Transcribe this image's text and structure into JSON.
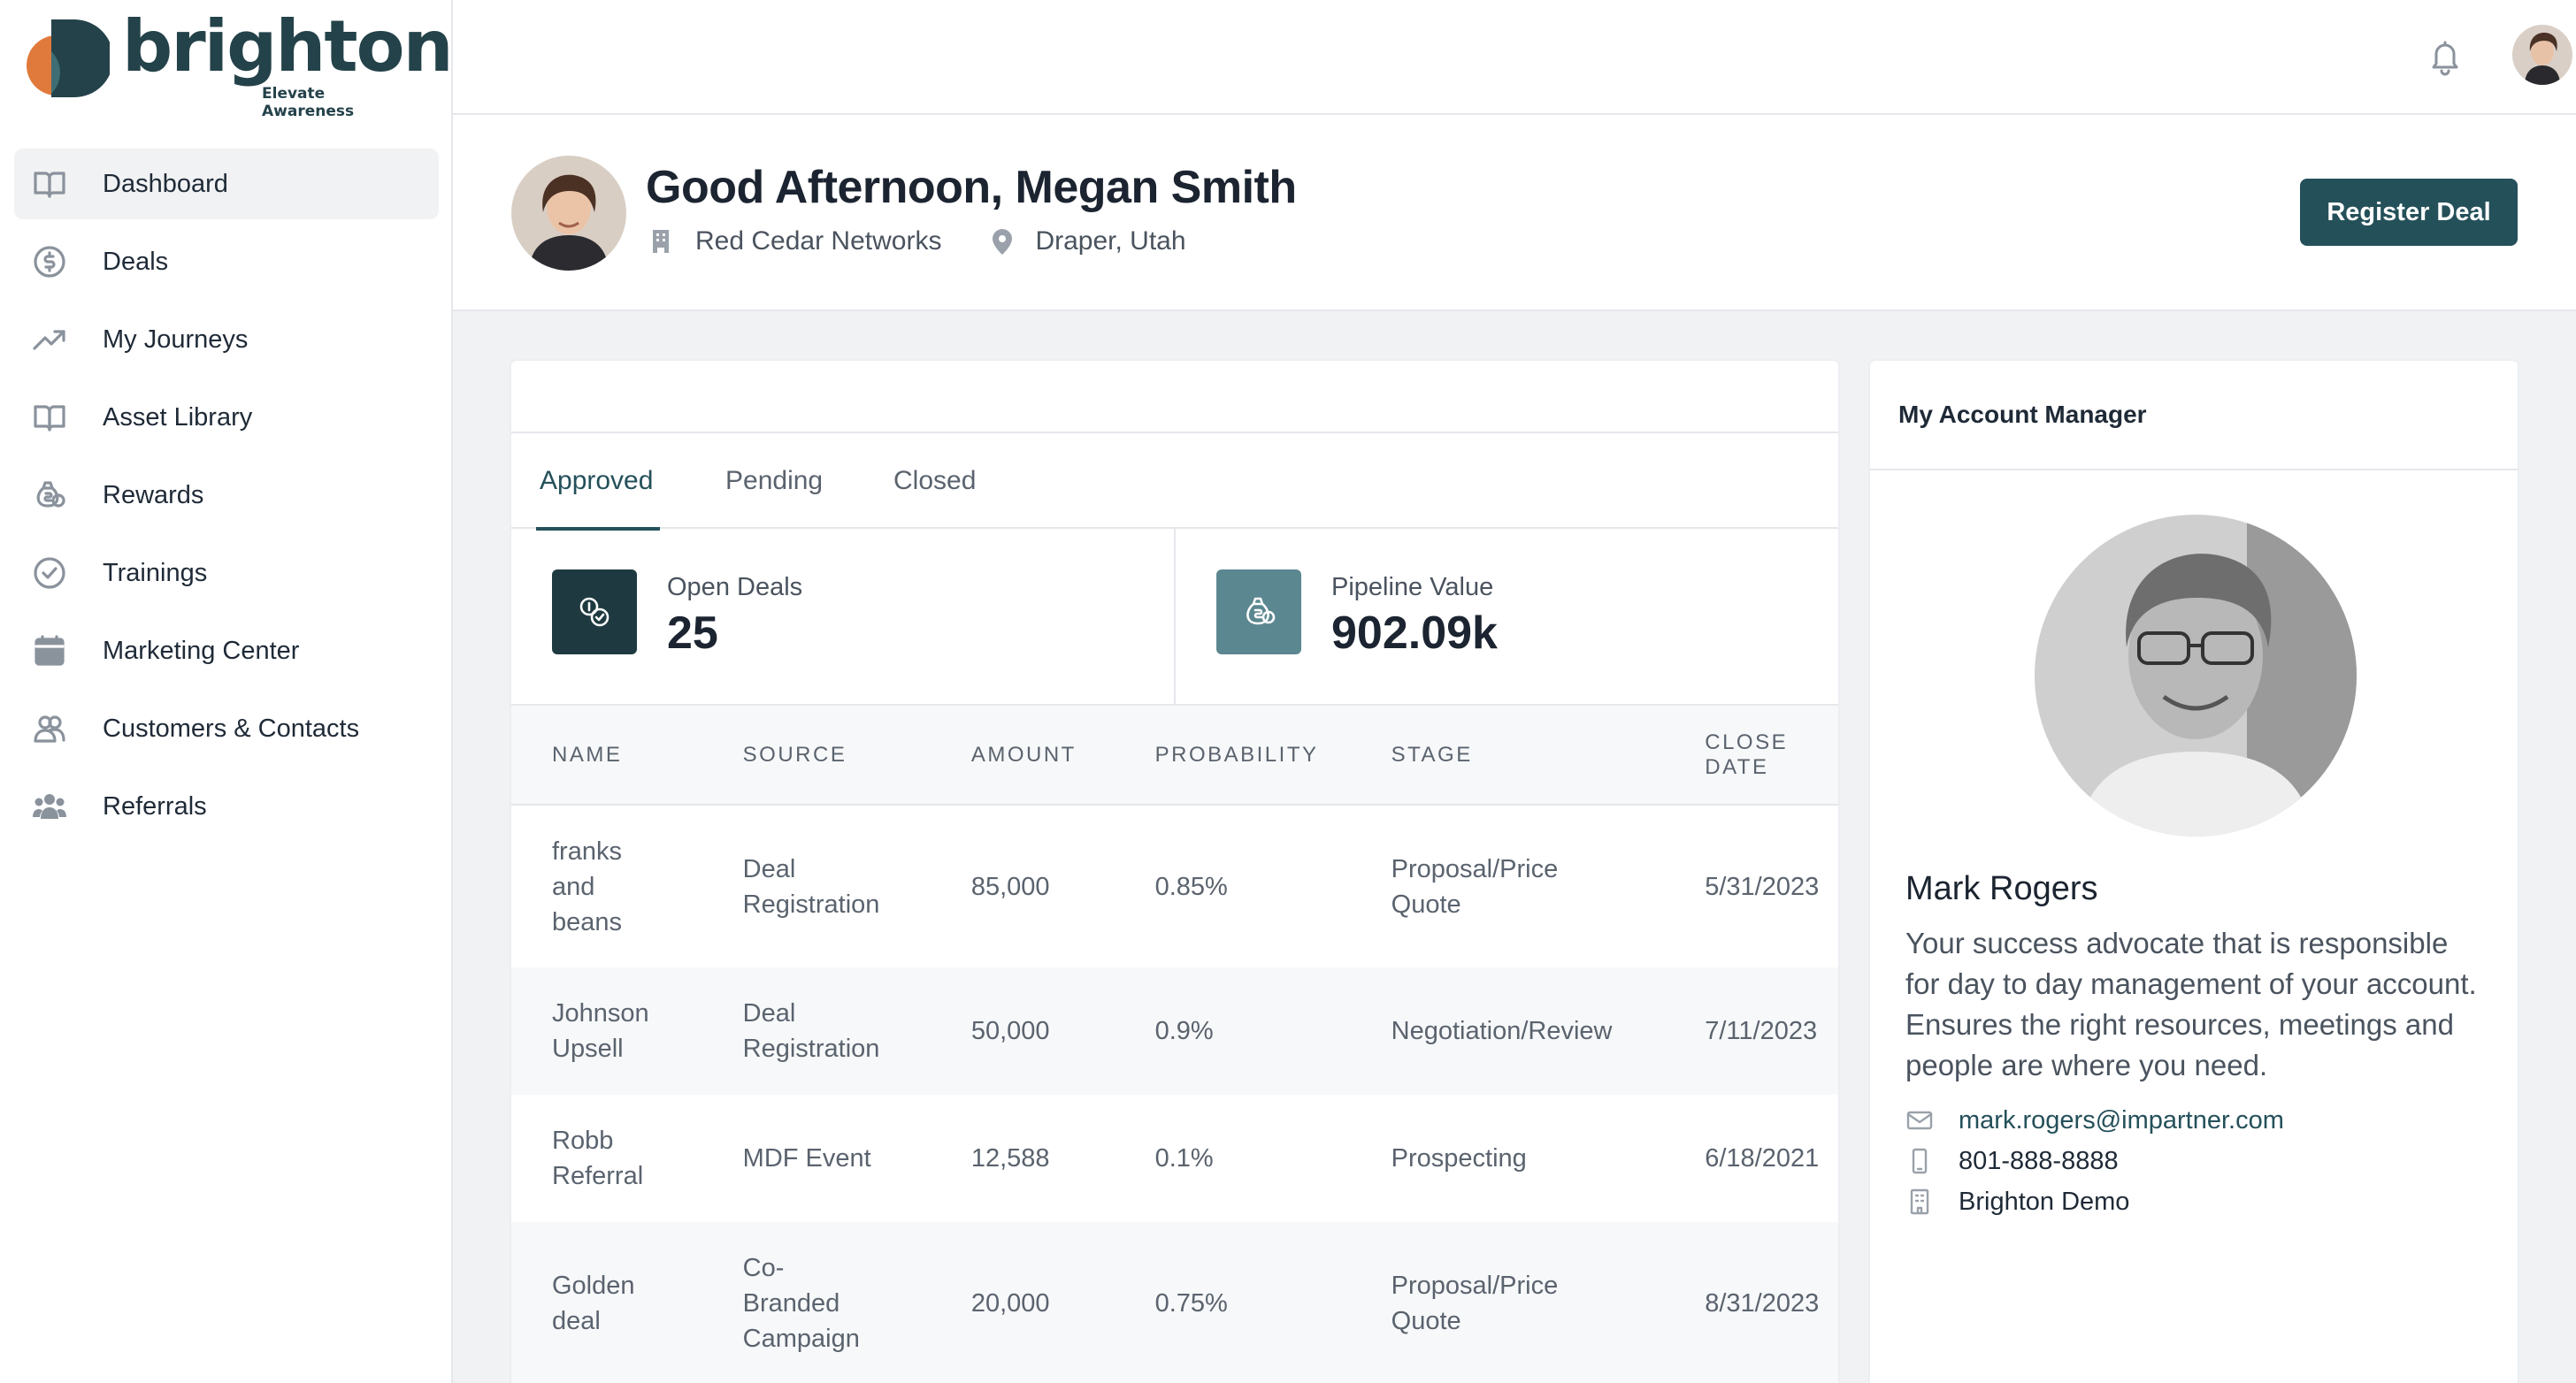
{
  "brand": {
    "name": "brighton",
    "tagline": "Elevate Awareness",
    "colors": {
      "primary": "#24505a",
      "accent_orange": "#e07a3c",
      "dark_teal": "#1e3a40"
    }
  },
  "sidebar": {
    "items": [
      {
        "label": "Dashboard",
        "icon": "book-open-icon",
        "active": true
      },
      {
        "label": "Deals",
        "icon": "dollar-circle-icon"
      },
      {
        "label": "My Journeys",
        "icon": "trending-up-icon"
      },
      {
        "label": "Asset Library",
        "icon": "book-open-icon"
      },
      {
        "label": "Rewards",
        "icon": "money-bag-icon"
      },
      {
        "label": "Trainings",
        "icon": "check-circle-icon"
      },
      {
        "label": "Marketing Center",
        "icon": "calendar-icon"
      },
      {
        "label": "Customers & Contacts",
        "icon": "users-icon"
      },
      {
        "label": "Referrals",
        "icon": "user-group-icon"
      }
    ]
  },
  "header": {
    "greeting": "Good Afternoon, Megan Smith",
    "company": "Red Cedar Networks",
    "location": "Draper, Utah",
    "register_label": "Register Deal"
  },
  "deals": {
    "tabs": [
      {
        "label": "Approved",
        "active": true
      },
      {
        "label": "Pending"
      },
      {
        "label": "Closed"
      }
    ],
    "stats": [
      {
        "label": "Open Deals",
        "value": "25",
        "icon": "coins-check-icon",
        "color": "#1e3a40"
      },
      {
        "label": "Pipeline Value",
        "value": "902.09k",
        "icon": "money-bag-icon",
        "color": "#5b8790"
      }
    ],
    "columns": [
      "NAME",
      "SOURCE",
      "AMOUNT",
      "PROBABILITY",
      "STAGE",
      "CLOSE DATE"
    ],
    "rows": [
      {
        "name": "franks and beans",
        "source": "Deal Registration",
        "amount": "85,000",
        "probability": "0.85%",
        "stage": "Proposal/Price Quote",
        "close_date": "5/31/2023"
      },
      {
        "name": "Johnson Upsell",
        "source": "Deal Registration",
        "amount": "50,000",
        "probability": "0.9%",
        "stage": "Negotiation/Review",
        "close_date": "7/11/2023"
      },
      {
        "name": "Robb Referral",
        "source": "MDF Event",
        "amount": "12,588",
        "probability": "0.1%",
        "stage": "Prospecting",
        "close_date": "6/18/2021"
      },
      {
        "name": "Golden deal",
        "source": "Co-Branded Campaign",
        "amount": "20,000",
        "probability": "0.75%",
        "stage": "Proposal/Price Quote",
        "close_date": "8/31/2023"
      }
    ]
  },
  "account_manager": {
    "title": "My Account Manager",
    "name": "Mark Rogers",
    "description": "Your success advocate that is responsible for day to day management of your account. Ensures the right resources, meetings and people are where you need.",
    "email": "mark.rogers@impartner.com",
    "phone": "801-888-8888",
    "company": "Brighton Demo"
  }
}
